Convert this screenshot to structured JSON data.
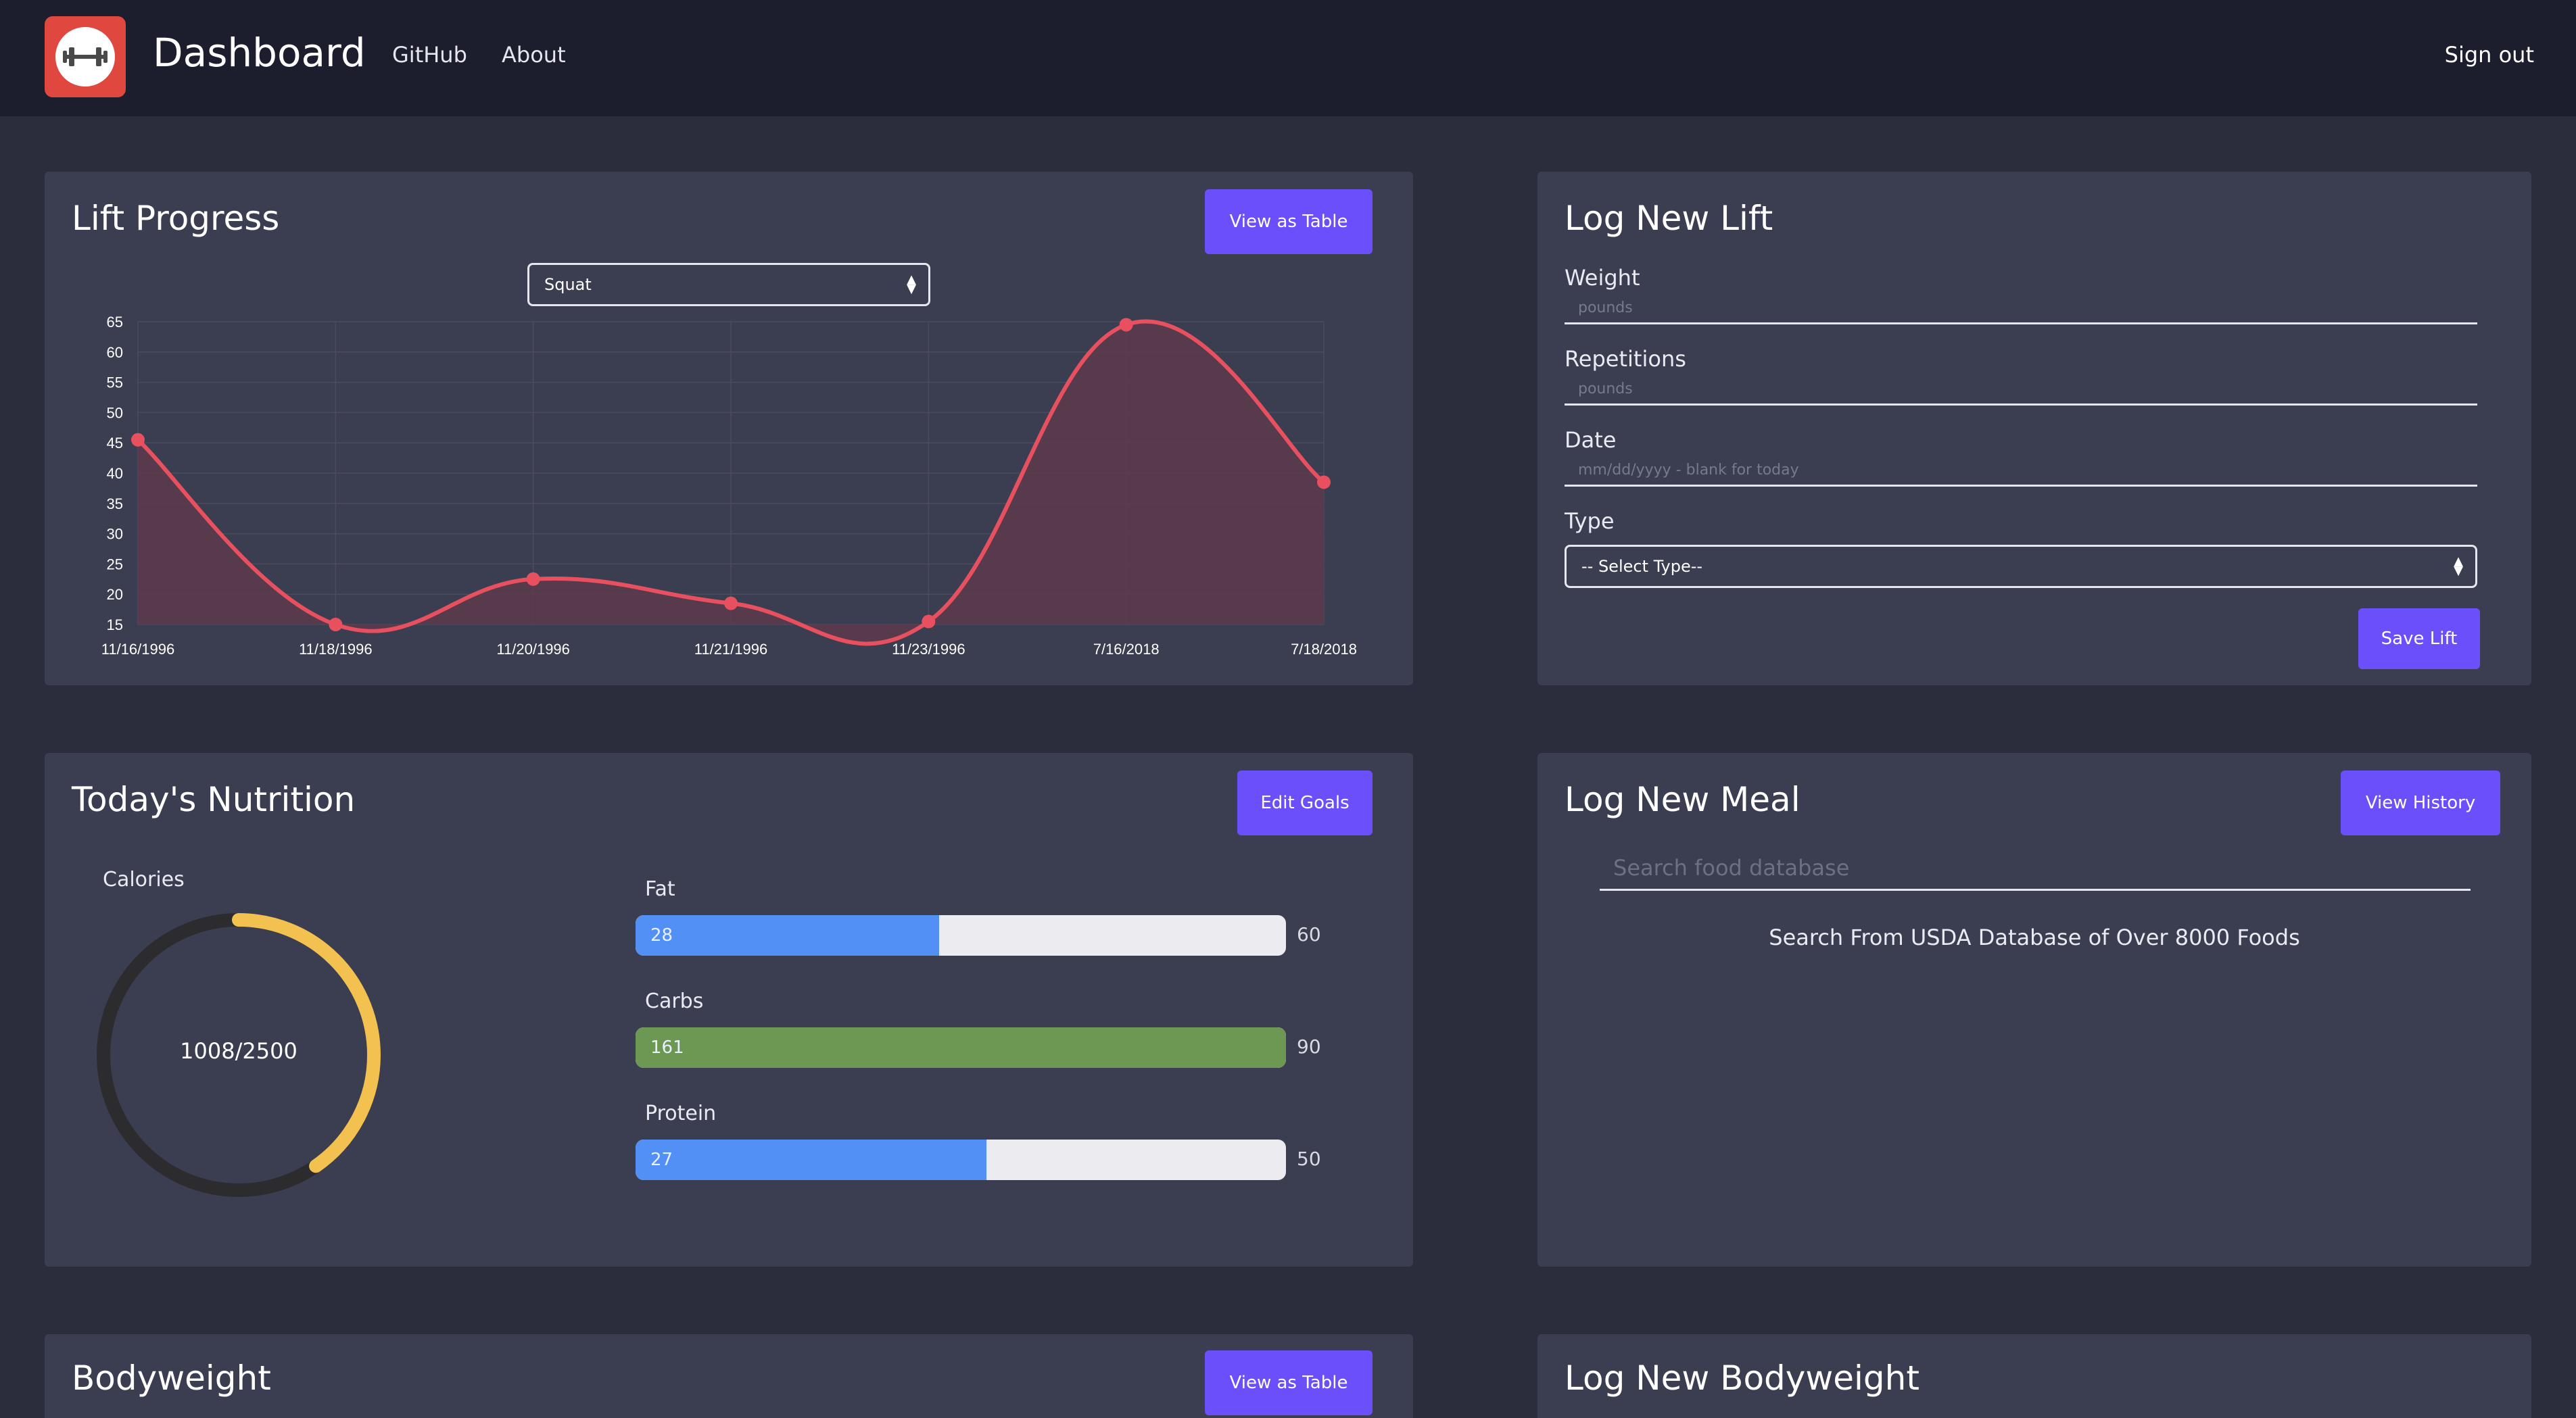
{
  "navbar": {
    "brand": "Dashboard",
    "links": [
      "GitHub",
      "About"
    ],
    "signout": "Sign out"
  },
  "lift_progress": {
    "title": "Lift Progress",
    "view_table": "View as Table",
    "select_value": "Squat"
  },
  "chart_data": {
    "type": "area",
    "categories": [
      "11/16/1996",
      "11/18/1996",
      "11/20/1996",
      "11/21/1996",
      "11/23/1996",
      "7/16/2018",
      "7/18/2018"
    ],
    "series": [
      {
        "values": [
          45.5,
          15,
          22.5,
          18.5,
          15.5,
          64.5,
          38.5
        ]
      }
    ],
    "yticks": [
      65,
      60,
      55,
      50,
      45,
      40,
      35,
      30,
      25,
      20,
      15
    ],
    "ylim": [
      15,
      65
    ],
    "line_color": "#e8505f",
    "fill_color": "#5e3a4c"
  },
  "log_lift": {
    "title": "Log New Lift",
    "weight_label": "Weight",
    "weight_placeholder": "pounds",
    "reps_label": "Repetitions",
    "reps_placeholder": "pounds",
    "date_label": "Date",
    "date_placeholder": "mm/dd/yyyy - blank for today",
    "type_label": "Type",
    "type_select": "-- Select Type--",
    "save": "Save Lift"
  },
  "nutrition": {
    "title": "Today's Nutrition",
    "edit_goals": "Edit Goals",
    "calories_label": "Calories",
    "calories_text": "1008/2500",
    "calories_fraction": 0.4032,
    "macros": [
      {
        "label": "Fat",
        "value": "28",
        "goal": "60",
        "fraction": 0.4667,
        "color": "#5290f5"
      },
      {
        "label": "Carbs",
        "value": "161",
        "goal": "90",
        "fraction": 1.0,
        "color": "#6c9854"
      },
      {
        "label": "Protein",
        "value": "27",
        "goal": "50",
        "fraction": 0.54,
        "color": "#5290f5"
      }
    ]
  },
  "log_meal": {
    "title": "Log New Meal",
    "view_history": "View History",
    "search_placeholder": "Search food database",
    "hint": "Search From USDA Database of Over 8000 Foods"
  },
  "bodyweight": {
    "title": "Bodyweight",
    "view_table": "View as Table"
  },
  "log_bodyweight": {
    "title": "Log New Bodyweight"
  },
  "colors": {
    "accent": "#6a4ffa",
    "calorie_ring": "#f3c14f",
    "ring_track": "#2c2c2e"
  }
}
